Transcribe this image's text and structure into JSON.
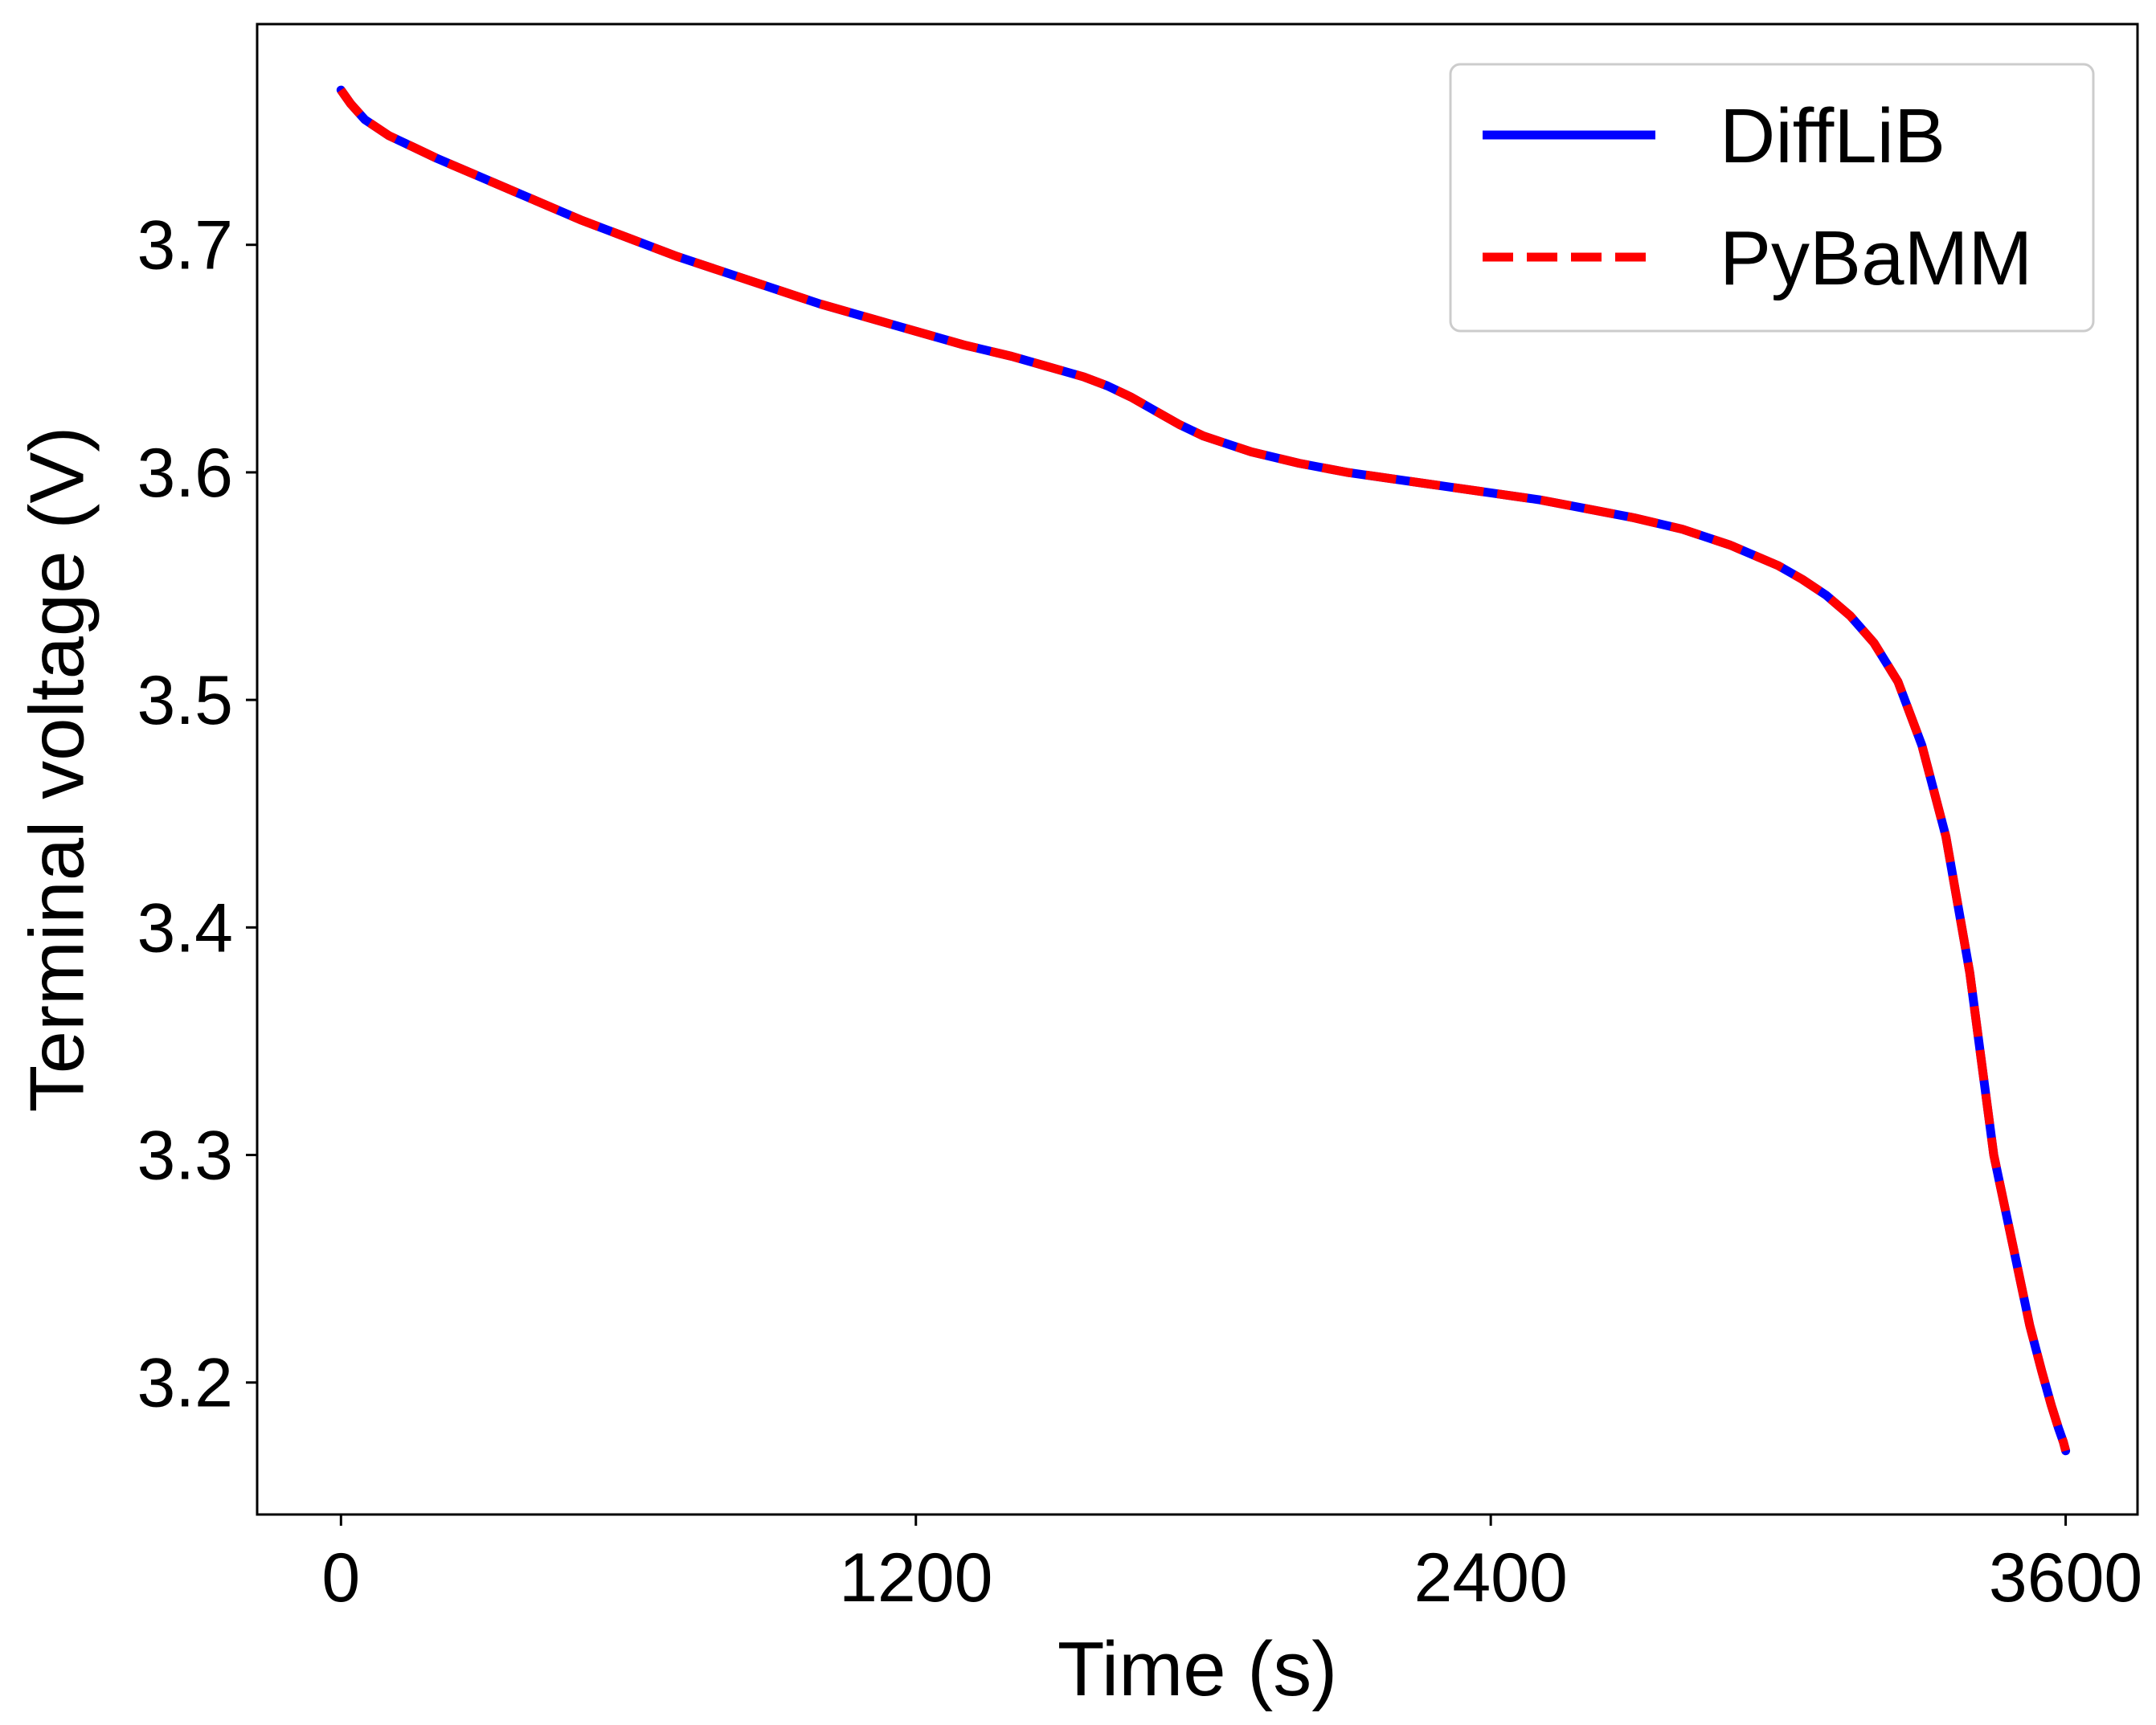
{
  "chart_data": {
    "type": "line",
    "title": "",
    "xlabel": "Time (s)",
    "ylabel": "Terminal voltage (V)",
    "xlim": [
      -175,
      3750
    ],
    "ylim": [
      3.142,
      3.797
    ],
    "xticks": [
      0,
      1200,
      2400,
      3600
    ],
    "xtick_labels": [
      "0",
      "1200",
      "2400",
      "3600"
    ],
    "yticks": [
      3.2,
      3.3,
      3.4,
      3.5,
      3.6,
      3.7
    ],
    "ytick_labels": [
      "3.2",
      "3.3",
      "3.4",
      "3.5",
      "3.6",
      "3.7"
    ],
    "grid": false,
    "legend_position": "top-right",
    "series": [
      {
        "name": "DiffLiB",
        "color": "#0000ff",
        "style": "solid",
        "x": [
          0,
          20,
          50,
          100,
          150,
          200,
          300,
          400,
          500,
          600,
          700,
          800,
          900,
          1000,
          1100,
          1200,
          1300,
          1400,
          1500,
          1550,
          1600,
          1650,
          1700,
          1750,
          1800,
          1900,
          2000,
          2100,
          2200,
          2300,
          2400,
          2500,
          2600,
          2700,
          2800,
          2900,
          3000,
          3050,
          3100,
          3150,
          3200,
          3250,
          3300,
          3350,
          3400,
          3450,
          3500,
          3525,
          3550,
          3570,
          3585,
          3595,
          3600
        ],
        "y": [
          3.768,
          3.762,
          3.755,
          3.748,
          3.743,
          3.738,
          3.729,
          3.72,
          3.711,
          3.703,
          3.695,
          3.688,
          3.681,
          3.674,
          3.668,
          3.662,
          3.656,
          3.651,
          3.645,
          3.642,
          3.638,
          3.633,
          3.627,
          3.621,
          3.616,
          3.609,
          3.604,
          3.6,
          3.597,
          3.594,
          3.591,
          3.588,
          3.584,
          3.58,
          3.575,
          3.568,
          3.559,
          3.553,
          3.546,
          3.537,
          3.525,
          3.508,
          3.48,
          3.44,
          3.38,
          3.3,
          3.25,
          3.225,
          3.205,
          3.19,
          3.18,
          3.174,
          3.17
        ]
      },
      {
        "name": "PyBaMM",
        "color": "#ff0000",
        "style": "dashed",
        "x": [
          0,
          20,
          50,
          100,
          150,
          200,
          300,
          400,
          500,
          600,
          700,
          800,
          900,
          1000,
          1100,
          1200,
          1300,
          1400,
          1500,
          1550,
          1600,
          1650,
          1700,
          1750,
          1800,
          1900,
          2000,
          2100,
          2200,
          2300,
          2400,
          2500,
          2600,
          2700,
          2800,
          2900,
          3000,
          3050,
          3100,
          3150,
          3200,
          3250,
          3300,
          3350,
          3400,
          3450,
          3500,
          3525,
          3550,
          3570,
          3585,
          3595,
          3600
        ],
        "y": [
          3.768,
          3.762,
          3.755,
          3.748,
          3.743,
          3.738,
          3.729,
          3.72,
          3.711,
          3.703,
          3.695,
          3.688,
          3.681,
          3.674,
          3.668,
          3.662,
          3.656,
          3.651,
          3.645,
          3.642,
          3.638,
          3.633,
          3.627,
          3.621,
          3.616,
          3.609,
          3.604,
          3.6,
          3.597,
          3.594,
          3.591,
          3.588,
          3.584,
          3.58,
          3.575,
          3.568,
          3.559,
          3.553,
          3.546,
          3.537,
          3.525,
          3.508,
          3.48,
          3.44,
          3.38,
          3.3,
          3.25,
          3.225,
          3.205,
          3.19,
          3.18,
          3.174,
          3.17
        ]
      }
    ]
  }
}
